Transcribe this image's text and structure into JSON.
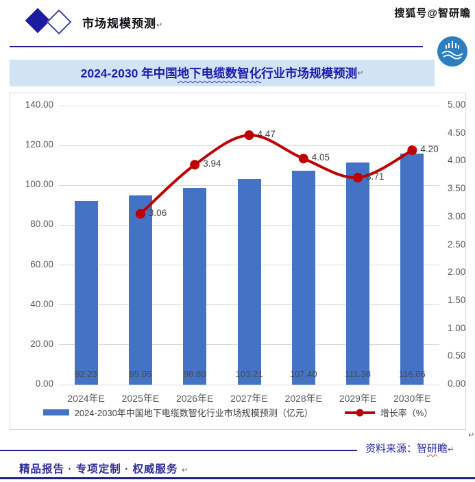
{
  "header": {
    "section_label": "市场规模预测",
    "return_mark": "↵",
    "watermark": "搜狐号@智研瞻"
  },
  "title": {
    "prefix": "2024-2030 年中国",
    "underlined": "地下电缆数智化",
    "suffix": "行业市场规模预测",
    "return_mark": "↵"
  },
  "chart_data": {
    "type": "bar+line",
    "categories": [
      "2024年E",
      "2025年E",
      "2026年E",
      "2027年E",
      "2028年E",
      "2029年E",
      "2030年E"
    ],
    "series": [
      {
        "name": "2024-2030年中国地下电缆数智化行业市场规模预测（亿元）",
        "type": "bar",
        "axis": "left",
        "color": "#4472C4",
        "values": [
          92.23,
          95.05,
          98.8,
          103.21,
          107.4,
          111.38,
          116.06
        ]
      },
      {
        "name": "增长率（%）",
        "type": "line",
        "axis": "right",
        "color": "#C00000",
        "values": [
          null,
          3.06,
          3.94,
          4.47,
          4.05,
          3.71,
          4.2
        ]
      }
    ],
    "left_axis": {
      "min": 0,
      "max": 140,
      "step": 20
    },
    "right_axis": {
      "min": 0,
      "max": 5,
      "step": 0.5
    },
    "grid": true,
    "legend_position": "bottom"
  },
  "source": {
    "prefix": "资料来源：智",
    "wavy": "研",
    "suffix": "瞻",
    "return_mark": "↵",
    "after_chart_return_mark": "↵"
  },
  "footer": {
    "text": "精品报告 ·  专项定制 · 权威服务",
    "return_mark": "↵"
  },
  "colors": {
    "bar_blue": "#4472C4",
    "line_red": "#C00000",
    "navy_rule": "#1F1F8C",
    "title_text": "#1B1BAD",
    "title_bg": "#D3E3F6",
    "axis_text": "#595959",
    "grid_line": "#D9D9D9",
    "logo_blue": "#2B7EC0",
    "diamond_navy": "#1C1C9E"
  }
}
